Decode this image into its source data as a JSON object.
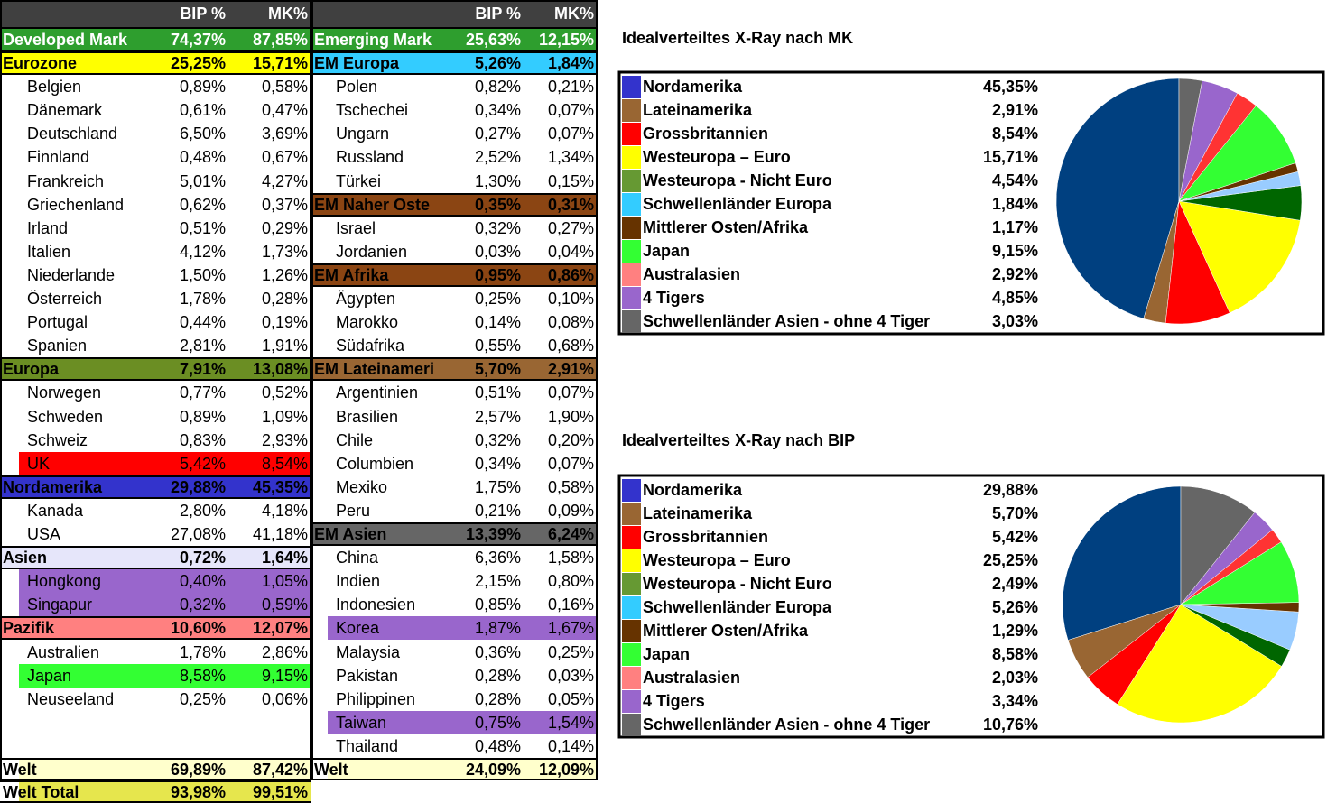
{
  "tables": [
    {
      "header": {
        "bip": "BIP %",
        "mk": "MK%"
      },
      "rows": [
        {
          "label": "Developed Mark",
          "bip": "74,37%",
          "mk": "87,85%",
          "group": true,
          "fill": "#2e9e2e",
          "text": "#ffffff"
        },
        {
          "label": "Eurozone",
          "bip": "25,25%",
          "mk": "15,71%",
          "group": true,
          "fill": "#ffff00"
        },
        {
          "label": "Belgien",
          "bip": "0,89%",
          "mk": "0,58%"
        },
        {
          "label": "Dänemark",
          "bip": "0,61%",
          "mk": "0,47%"
        },
        {
          "label": "Deutschland",
          "bip": "6,50%",
          "mk": "3,69%"
        },
        {
          "label": "Finnland",
          "bip": "0,48%",
          "mk": "0,67%"
        },
        {
          "label": "Frankreich",
          "bip": "5,01%",
          "mk": "4,27%"
        },
        {
          "label": "Griechenland",
          "bip": "0,62%",
          "mk": "0,37%"
        },
        {
          "label": "Irland",
          "bip": "0,51%",
          "mk": "0,29%"
        },
        {
          "label": "Italien",
          "bip": "4,12%",
          "mk": "1,73%"
        },
        {
          "label": "Niederlande",
          "bip": "1,50%",
          "mk": "1,26%"
        },
        {
          "label": "Österreich",
          "bip": "1,78%",
          "mk": "0,28%"
        },
        {
          "label": "Portugal",
          "bip": "0,44%",
          "mk": "0,19%"
        },
        {
          "label": "Spanien",
          "bip": "2,81%",
          "mk": "1,91%"
        },
        {
          "label": "Europa",
          "bip": "7,91%",
          "mk": "13,08%",
          "group": true,
          "fill": "#6b8e23"
        },
        {
          "label": "Norwegen",
          "bip": "0,77%",
          "mk": "0,52%"
        },
        {
          "label": "Schweden",
          "bip": "0,89%",
          "mk": "1,09%"
        },
        {
          "label": "Schweiz",
          "bip": "0,83%",
          "mk": "2,93%"
        },
        {
          "label": "UK",
          "bip": "5,42%",
          "mk": "8,54%",
          "fill": "#ff0000"
        },
        {
          "label": "Nordamerika",
          "bip": "29,88%",
          "mk": "45,35%",
          "group": true,
          "fill": "#3333cc"
        },
        {
          "label": "Kanada",
          "bip": "2,80%",
          "mk": "4,18%"
        },
        {
          "label": "USA",
          "bip": "27,08%",
          "mk": "41,18%"
        },
        {
          "label": "Asien",
          "bip": "0,72%",
          "mk": "1,64%",
          "group": true,
          "fill": "#e6e6fa"
        },
        {
          "label": "Hongkong",
          "bip": "0,40%",
          "mk": "1,05%",
          "fill": "#9966cc"
        },
        {
          "label": "Singapur",
          "bip": "0,32%",
          "mk": "0,59%",
          "fill": "#9966cc"
        },
        {
          "label": "Pazifik",
          "bip": "10,60%",
          "mk": "12,07%",
          "group": true,
          "fill": "#ff8080"
        },
        {
          "label": "Australien",
          "bip": "1,78%",
          "mk": "2,86%"
        },
        {
          "label": "Japan",
          "bip": "8,58%",
          "mk": "9,15%",
          "fill": "#33ff33"
        },
        {
          "label": "Neuseeland",
          "bip": "0,25%",
          "mk": "0,06%"
        }
      ],
      "footer": [
        {
          "label": "Welt",
          "bip": "69,89%",
          "mk": "87,42%",
          "fill": "#ffffcc"
        },
        {
          "label": "Welt Total",
          "bip": "93,98%",
          "mk": "99,51%",
          "fill": "#e6e64d"
        }
      ]
    },
    {
      "header": {
        "bip": "BIP %",
        "mk": "MK%"
      },
      "rows": [
        {
          "label": "Emerging Mark",
          "bip": "25,63%",
          "mk": "12,15%",
          "group": true,
          "fill": "#2e9e2e",
          "text": "#ffffff"
        },
        {
          "label": "EM Europa",
          "bip": "5,26%",
          "mk": "1,84%",
          "group": true,
          "fill": "#33ccff"
        },
        {
          "label": "Polen",
          "bip": "0,82%",
          "mk": "0,21%"
        },
        {
          "label": "Tschechei",
          "bip": "0,34%",
          "mk": "0,07%"
        },
        {
          "label": "Ungarn",
          "bip": "0,27%",
          "mk": "0,07%"
        },
        {
          "label": "Russland",
          "bip": "2,52%",
          "mk": "1,34%"
        },
        {
          "label": "Türkei",
          "bip": "1,30%",
          "mk": "0,15%"
        },
        {
          "label": "EM Naher Oste",
          "bip": "0,35%",
          "mk": "0,31%",
          "group": true,
          "fill": "#8b4513"
        },
        {
          "label": "Israel",
          "bip": "0,32%",
          "mk": "0,27%"
        },
        {
          "label": "Jordanien",
          "bip": "0,03%",
          "mk": "0,04%"
        },
        {
          "label": "EM Afrika",
          "bip": "0,95%",
          "mk": "0,86%",
          "group": true,
          "fill": "#8b4513"
        },
        {
          "label": "Ägypten",
          "bip": "0,25%",
          "mk": "0,10%"
        },
        {
          "label": "Marokko",
          "bip": "0,14%",
          "mk": "0,08%"
        },
        {
          "label": "Südafrika",
          "bip": "0,55%",
          "mk": "0,68%"
        },
        {
          "label": "EM Lateinameri",
          "bip": "5,70%",
          "mk": "2,91%",
          "group": true,
          "fill": "#996633"
        },
        {
          "label": "Argentinien",
          "bip": "0,51%",
          "mk": "0,07%"
        },
        {
          "label": "Brasilien",
          "bip": "2,57%",
          "mk": "1,90%"
        },
        {
          "label": "Chile",
          "bip": "0,32%",
          "mk": "0,20%"
        },
        {
          "label": "Columbien",
          "bip": "0,34%",
          "mk": "0,07%"
        },
        {
          "label": "Mexiko",
          "bip": "1,75%",
          "mk": "0,58%"
        },
        {
          "label": "Peru",
          "bip": "0,21%",
          "mk": "0,09%"
        },
        {
          "label": "EM Asien",
          "bip": "13,39%",
          "mk": "6,24%",
          "group": true,
          "fill": "#666666"
        },
        {
          "label": "China",
          "bip": "6,36%",
          "mk": "1,58%"
        },
        {
          "label": "Indien",
          "bip": "2,15%",
          "mk": "0,80%"
        },
        {
          "label": "Indonesien",
          "bip": "0,85%",
          "mk": "0,16%"
        },
        {
          "label": "Korea",
          "bip": "1,87%",
          "mk": "1,67%",
          "fill": "#9966cc"
        },
        {
          "label": "Malaysia",
          "bip": "0,36%",
          "mk": "0,25%"
        },
        {
          "label": "Pakistan",
          "bip": "0,28%",
          "mk": "0,03%"
        },
        {
          "label": "Philippinen",
          "bip": "0,28%",
          "mk": "0,05%"
        },
        {
          "label": "Taiwan",
          "bip": "0,75%",
          "mk": "1,54%",
          "fill": "#9966cc"
        },
        {
          "label": "Thailand",
          "bip": "0,48%",
          "mk": "0,14%"
        }
      ],
      "footer": [
        {
          "label": "Welt",
          "bip": "24,09%",
          "mk": "12,09%",
          "fill": "#ffffcc"
        }
      ]
    }
  ],
  "chart_data": [
    {
      "type": "pie",
      "title": "Idealverteiltes X-Ray nach MK",
      "categories": [
        "Nordamerika",
        "Lateinamerika",
        "Grossbritannien",
        "Westeuropa – Euro",
        "Westeuropa - Nicht Euro",
        "Schwellenländer Europa",
        "Mittlerer Osten/Afrika",
        "Japan",
        "Australasien",
        "4 Tigers",
        "Schwellenländer Asien - ohne 4 Tiger"
      ],
      "values": [
        45.35,
        2.91,
        8.54,
        15.71,
        4.54,
        1.84,
        1.17,
        9.15,
        2.92,
        4.85,
        3.03
      ],
      "value_labels": [
        "45,35%",
        "2,91%",
        "8,54%",
        "15,71%",
        "4,54%",
        "1,84%",
        "1,17%",
        "9,15%",
        "2,92%",
        "4,85%",
        "3,03%"
      ],
      "colors": [
        "#004080",
        "#996633",
        "#ff0000",
        "#ffff00",
        "#006600",
        "#99ccff",
        "#663300",
        "#33ff33",
        "#ff3333",
        "#9966cc",
        "#666666"
      ],
      "legend_colors": [
        "#3333cc",
        "#996633",
        "#ff0000",
        "#ffff00",
        "#669933",
        "#33ccff",
        "#663300",
        "#33ff33",
        "#ff8080",
        "#9966cc",
        "#666666"
      ]
    },
    {
      "type": "pie",
      "title": "Idealverteiltes X-Ray nach BIP",
      "categories": [
        "Nordamerika",
        "Lateinamerika",
        "Grossbritannien",
        "Westeuropa – Euro",
        "Westeuropa - Nicht Euro",
        "Schwellenländer Europa",
        "Mittlerer Osten/Afrika",
        "Japan",
        "Australasien",
        "4 Tigers",
        "Schwellenländer Asien - ohne 4 Tiger"
      ],
      "values": [
        29.88,
        5.7,
        5.42,
        25.25,
        2.49,
        5.26,
        1.29,
        8.58,
        2.03,
        3.34,
        10.76
      ],
      "value_labels": [
        "29,88%",
        "5,70%",
        "5,42%",
        "25,25%",
        "2,49%",
        "5,26%",
        "1,29%",
        "8,58%",
        "2,03%",
        "3,34%",
        "10,76%"
      ],
      "colors": [
        "#004080",
        "#996633",
        "#ff0000",
        "#ffff00",
        "#006600",
        "#99ccff",
        "#663300",
        "#33ff33",
        "#ff3333",
        "#9966cc",
        "#666666"
      ],
      "legend_colors": [
        "#3333cc",
        "#996633",
        "#ff0000",
        "#ffff00",
        "#669933",
        "#33ccff",
        "#663300",
        "#33ff33",
        "#ff8080",
        "#9966cc",
        "#666666"
      ]
    }
  ]
}
